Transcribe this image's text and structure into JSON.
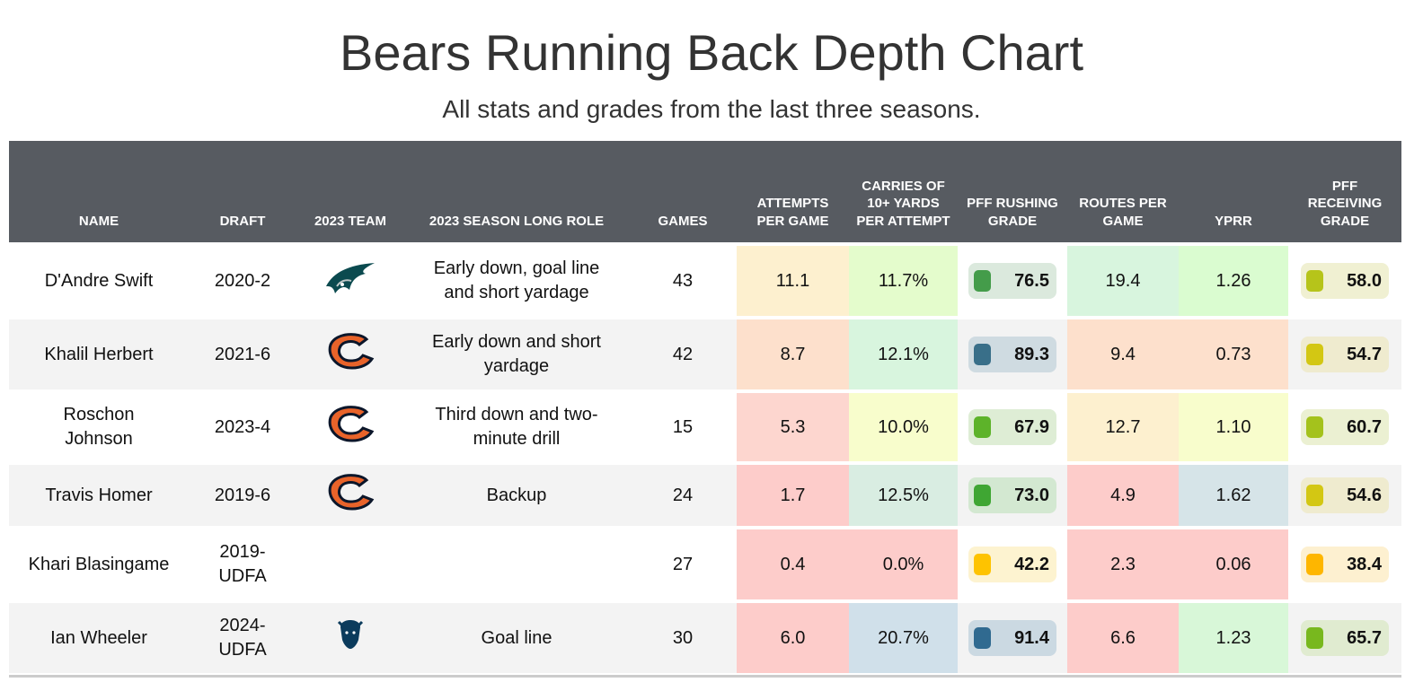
{
  "title": "Bears Running Back Depth Chart",
  "subtitle": "All stats and grades from the last three seasons.",
  "chart_data": {
    "type": "table",
    "columns": [
      "NAME",
      "DRAFT",
      "2023 TEAM",
      "2023 SEASON LONG ROLE",
      "GAMES",
      "ATTEMPTS PER GAME",
      "CARRIES OF 10+ YARDS PER ATTEMPT",
      "PFF RUSHING GRADE",
      "ROUTES PER GAME",
      "YPRR",
      "PFF RECEIVING GRADE"
    ],
    "rows": [
      {
        "name": "D'Andre Swift",
        "draft": "2020-2",
        "team": "eagles-logo",
        "role": "Early down, goal line and short yardage",
        "games": "43",
        "att": "11.1",
        "car": "11.7%",
        "rush": "76.5",
        "routes": "19.4",
        "yprr": "1.26",
        "rec": "58.0",
        "colors": {
          "att": "#fdf0cf",
          "car": "#e4fccc",
          "rush": "#449c4a",
          "rush_bg": "#dbe9dd",
          "routes": "#d8f5de",
          "yprr": "#dafcd0",
          "rec": "#b6c41a",
          "rec_bg": "#f0f0d2"
        }
      },
      {
        "name": "Khalil Herbert",
        "draft": "2021-6",
        "team": "bears-logo",
        "role": "Early down and short yardage",
        "games": "42",
        "att": "8.7",
        "car": "12.1%",
        "rush": "89.3",
        "routes": "9.4",
        "yprr": "0.73",
        "rec": "54.7",
        "colors": {
          "att": "#fde0cc",
          "car": "#d8f5de",
          "rush": "#396f89",
          "rush_bg": "#cfdbe1",
          "routes": "#fde0cc",
          "yprr": "#fde0cc",
          "rec": "#d3c713",
          "rec_bg": "#efebcf"
        }
      },
      {
        "name": "Roschon Johnson",
        "draft": "2023-4",
        "team": "bears-logo",
        "role": "Third down and two-minute drill",
        "games": "15",
        "att": "5.3",
        "car": "10.0%",
        "rush": "67.9",
        "routes": "12.7",
        "yprr": "1.10",
        "rec": "60.7",
        "colors": {
          "att": "#fdd6cf",
          "car": "#f8fdcc",
          "rush": "#5db32a",
          "rush_bg": "#deedd5",
          "routes": "#fdf0cf",
          "yprr": "#f8fdcc",
          "rec": "#a4c21c",
          "rec_bg": "#ebf0d2"
        }
      },
      {
        "name": "Travis Homer",
        "draft": "2019-6",
        "team": "bears-logo",
        "role": "Backup",
        "games": "24",
        "att": "1.7",
        "car": "12.5%",
        "rush": "73.0",
        "routes": "4.9",
        "yprr": "1.62",
        "rec": "54.6",
        "colors": {
          "att": "#fdccca",
          "car": "#d9ede2",
          "rush": "#3fa633",
          "rush_bg": "#d3e8d1",
          "routes": "#fdccca",
          "yprr": "#d6e4e8",
          "rec": "#d3c713",
          "rec_bg": "#efebcf"
        }
      },
      {
        "name": "Khari Blasingame",
        "draft": "2019-UDFA",
        "team": "",
        "role": "",
        "games": "27",
        "att": "0.4",
        "car": "0.0%",
        "rush": "42.2",
        "routes": "2.3",
        "yprr": "0.06",
        "rec": "38.4",
        "colors": {
          "att": "#fdccca",
          "car": "#fdccca",
          "rush": "#fec300",
          "rush_bg": "#fdf3d0",
          "routes": "#fdccca",
          "yprr": "#fdccca",
          "rec": "#feb600",
          "rec_bg": "#fdf0d0"
        }
      },
      {
        "name": "Ian Wheeler",
        "draft": "2024-UDFA",
        "team": "bills-logo",
        "role": "Goal line",
        "games": "30",
        "att": "6.0",
        "car": "20.7%",
        "rush": "91.4",
        "routes": "6.6",
        "yprr": "1.23",
        "rec": "65.7",
        "colors": {
          "att": "#fdccca",
          "car": "#d0e0ea",
          "rush": "#306a90",
          "rush_bg": "#cbd9e2",
          "routes": "#fdccca",
          "yprr": "#d8f7d8",
          "rec": "#78b81e",
          "rec_bg": "#e0ebd0"
        }
      }
    ]
  }
}
